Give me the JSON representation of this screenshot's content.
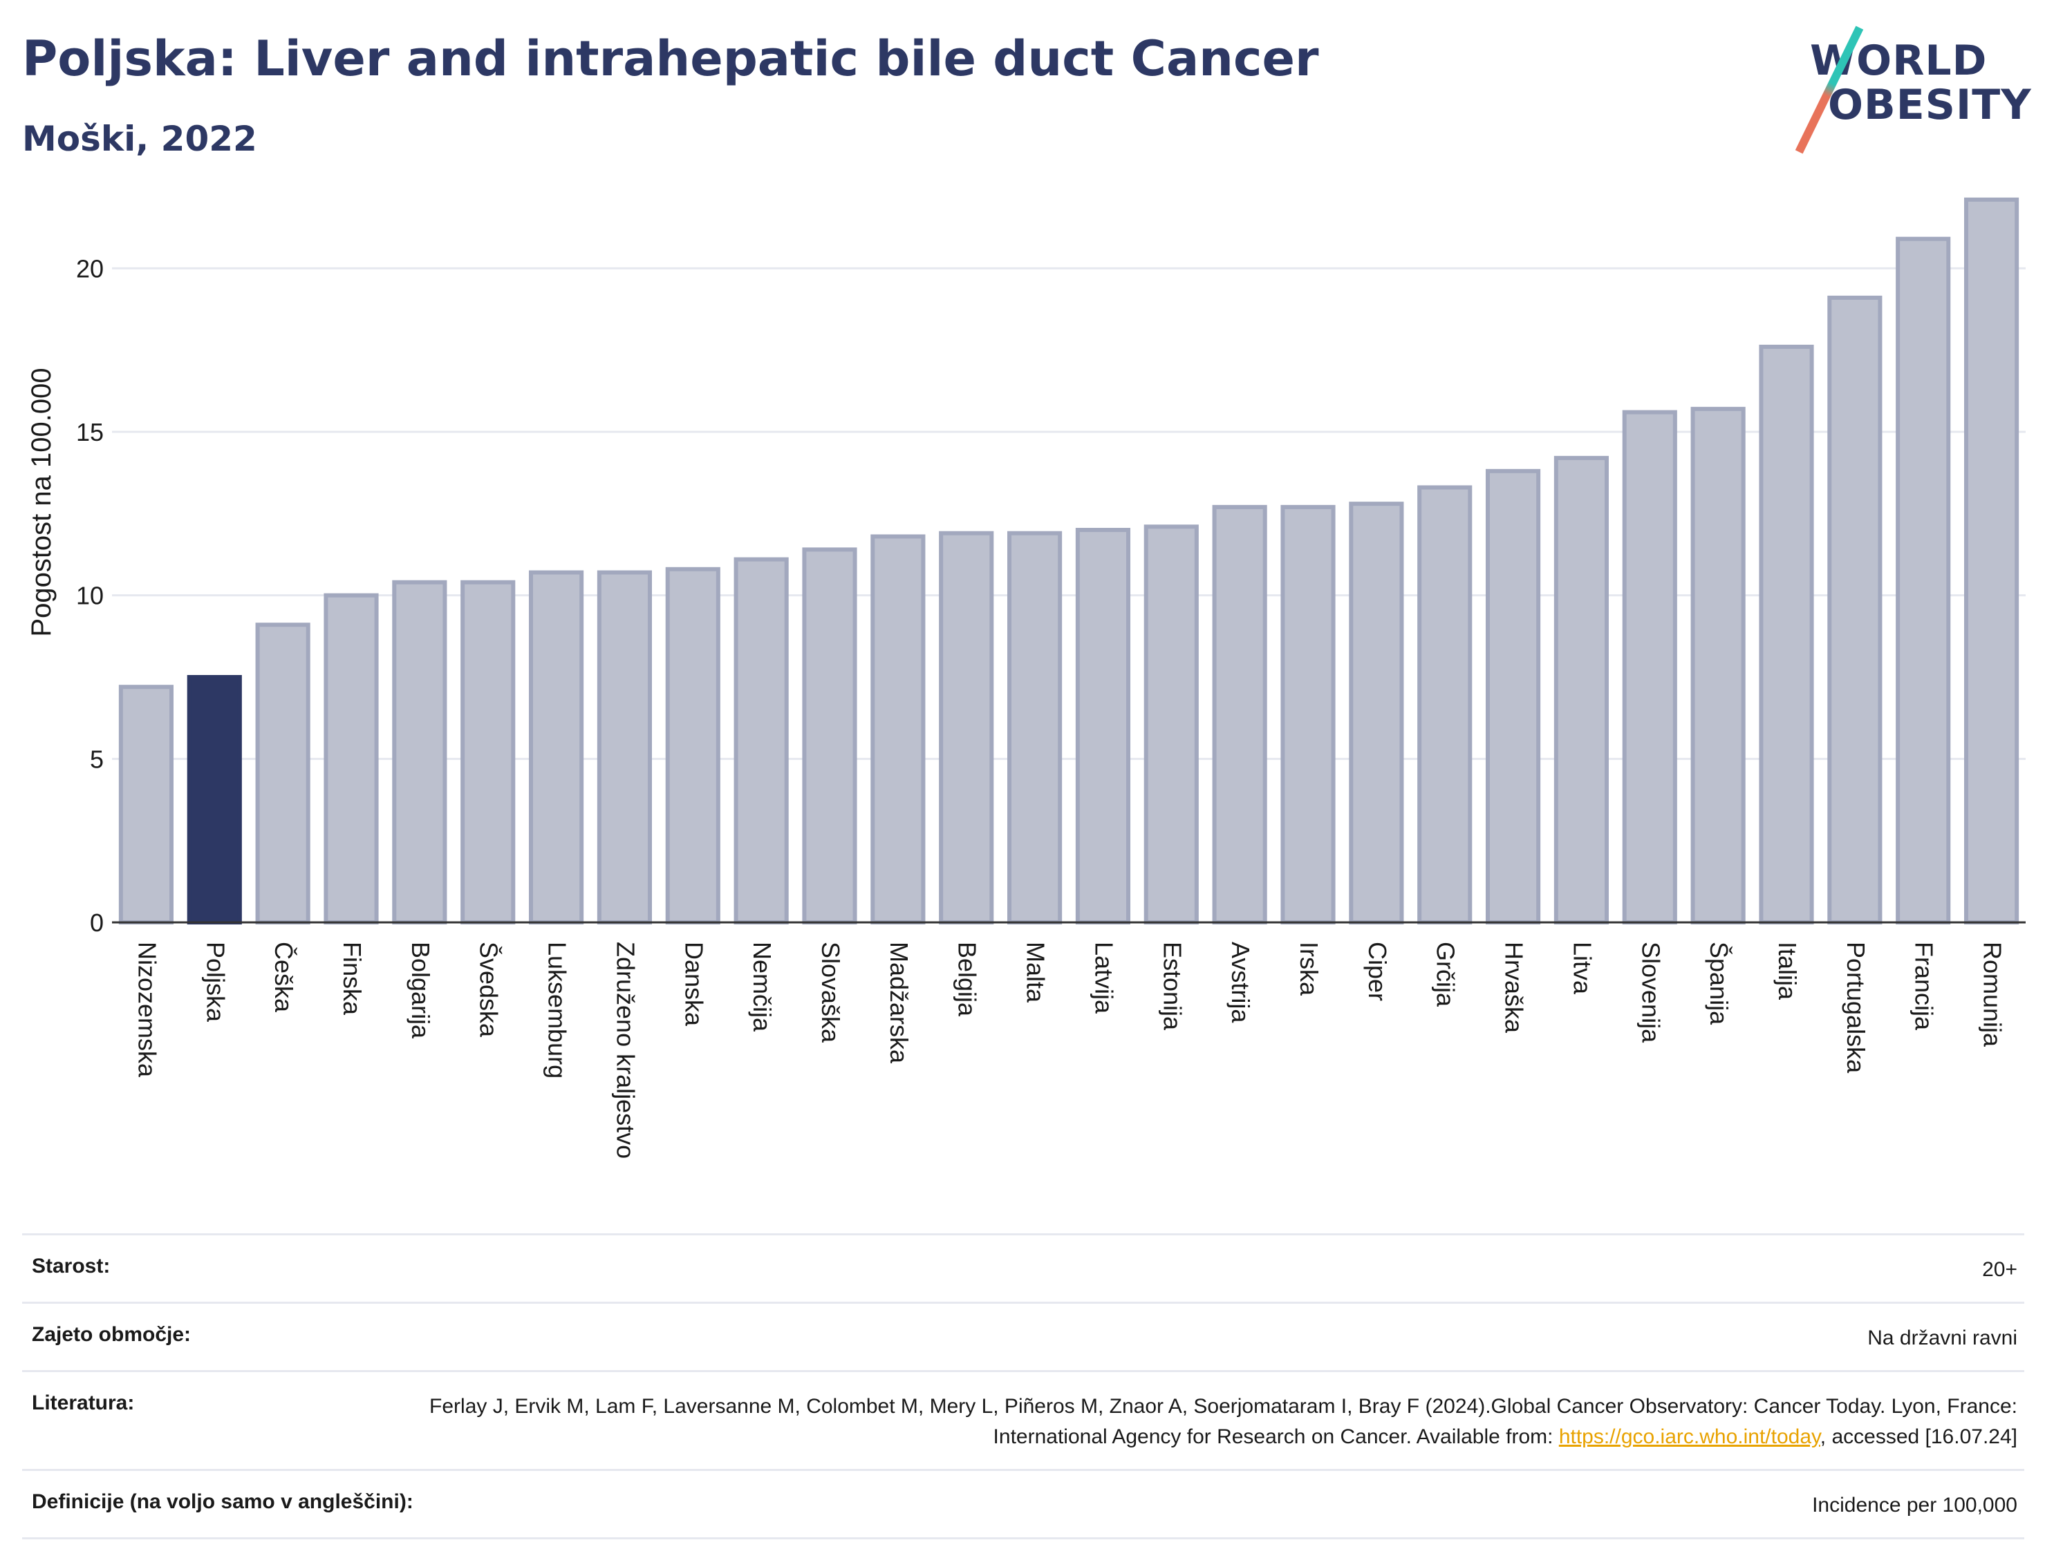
{
  "header": {
    "title": "Poljska: Liver and intrahepatic bile duct Cancer",
    "subtitle": "Moški, 2022"
  },
  "logo": {
    "line1": "WORLD",
    "line2": "OBESITY",
    "slash_top_color": "#2ec4b6",
    "slash_bottom_color": "#e8735a"
  },
  "colors": {
    "bar_default": "#bcc0ce",
    "bar_border": "#a2a8be",
    "bar_highlight": "#2d3864",
    "grid": "#e6e8ef",
    "axis": "#333333"
  },
  "chart_data": {
    "type": "bar",
    "title": "",
    "xlabel": "",
    "ylabel": "Pogostost na 100.000",
    "categories": [
      "Nizozemska",
      "Poljska",
      "Češka",
      "Finska",
      "Bolgarija",
      "Švedska",
      "Luksemburg",
      "Združeno kraljestvo",
      "Danska",
      "Nemčija",
      "Slovaška",
      "Madžarska",
      "Belgija",
      "Malta",
      "Latvija",
      "Estonija",
      "Avstrija",
      "Irska",
      "Ciper",
      "Grčija",
      "Hrvaška",
      "Litva",
      "Slovenija",
      "Španija",
      "Italija",
      "Portugalska",
      "Francija",
      "Romunija"
    ],
    "values": [
      7.2,
      7.5,
      9.1,
      10.0,
      10.4,
      10.4,
      10.7,
      10.7,
      10.8,
      11.1,
      11.4,
      11.8,
      11.9,
      11.9,
      12.0,
      12.1,
      12.7,
      12.7,
      12.8,
      13.3,
      13.8,
      14.2,
      15.6,
      15.7,
      17.6,
      19.1,
      20.9,
      22.1
    ],
    "highlight": "Poljska",
    "ylim": [
      0,
      22.5
    ],
    "yticks": [
      0,
      5,
      10,
      15,
      20
    ],
    "grid": true,
    "legend": "none"
  },
  "info": {
    "age_label": "Starost:",
    "age_value": "20+",
    "coverage_label": "Zajeto območje:",
    "coverage_value": "Na državni ravni",
    "reference_label": "Literatura:",
    "reference_text": "Ferlay J, Ervik M, Lam F, Laversanne M, Colombet M, Mery L, Piñeros M, Znaor A, Soerjomataram I, Bray F (2024).Global Cancer Observatory: Cancer Today. Lyon, France: International Agency for Research on Cancer. Available from:",
    "reference_link": "https://gco.iarc.who.int/today",
    "reference_tail": ", accessed [16.07.24]",
    "definitions_label": "Definicije (na voljo samo v angleščini):",
    "definitions_value": "Incidence per 100,000"
  }
}
